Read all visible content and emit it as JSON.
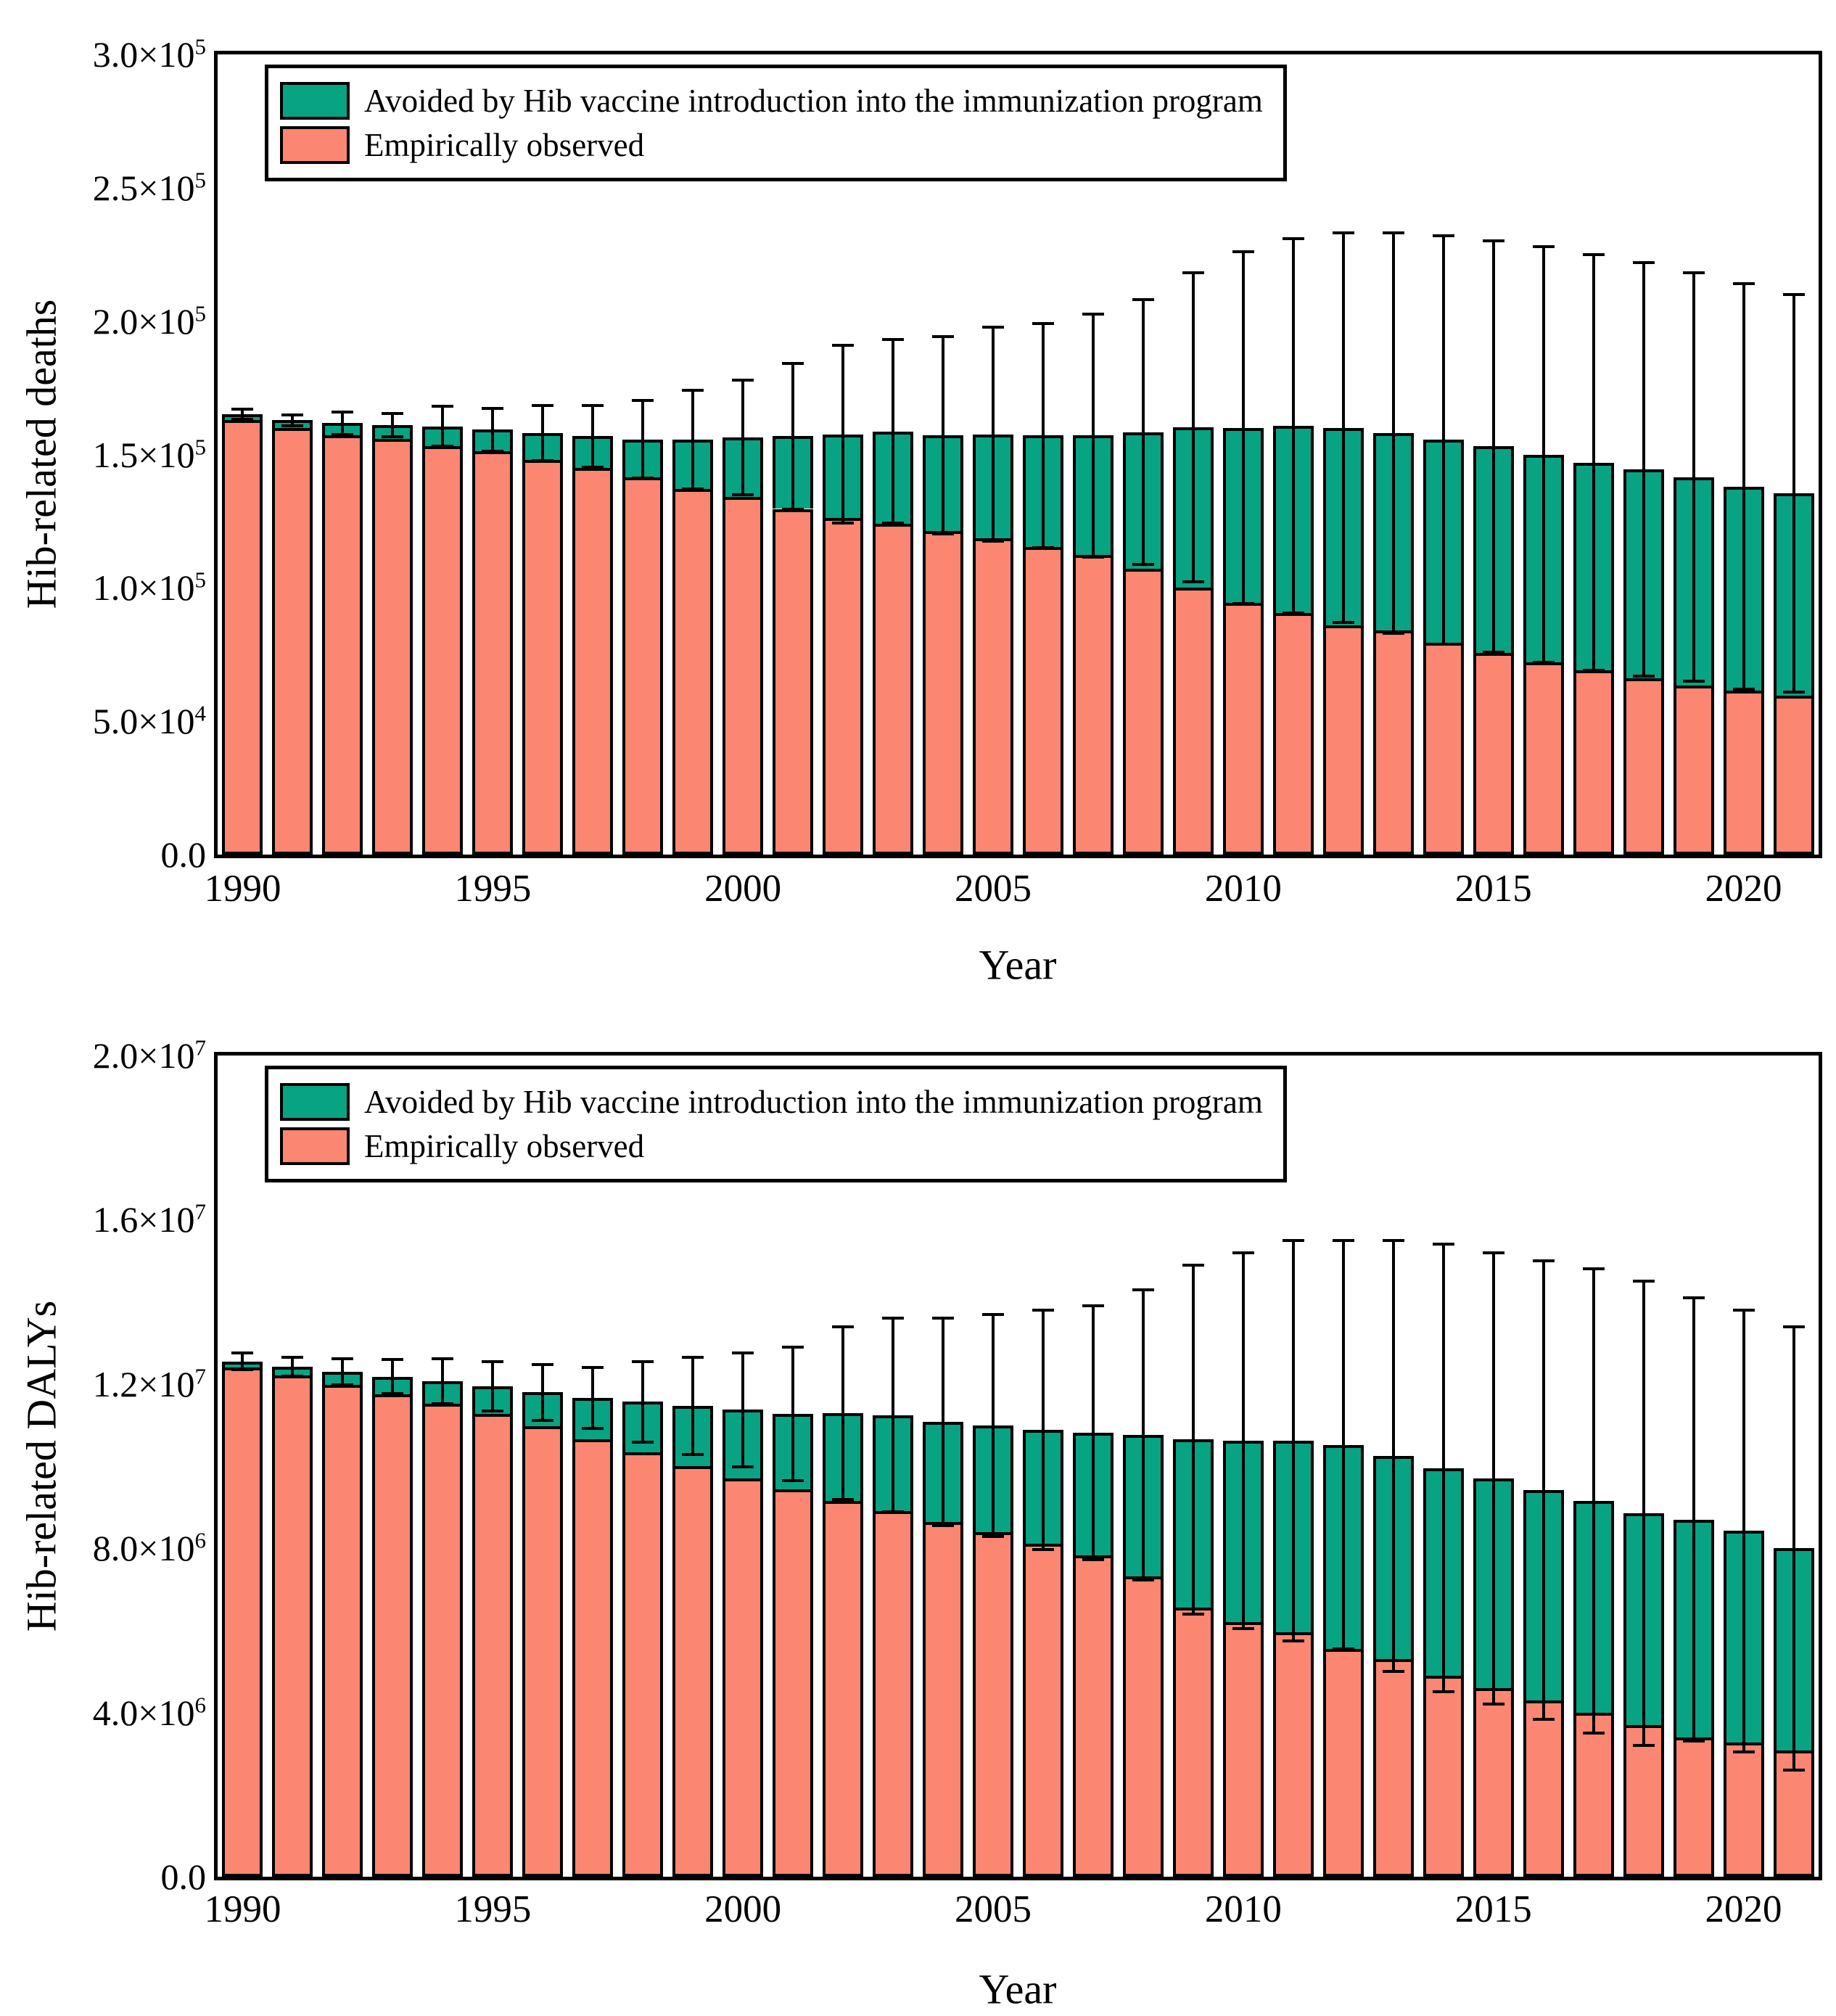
{
  "figure_background": "#ffffff",
  "colors": {
    "avoided": "#07a383",
    "observed": "#fb8672",
    "outline": "#000000",
    "error_bar": "#000000"
  },
  "legend": {
    "items": [
      {
        "key": "avoided",
        "label": "Avoided by Hib vaccine introduction into the immunization program"
      },
      {
        "key": "observed",
        "label": "Empirically observed"
      }
    ]
  },
  "chart_data": [
    {
      "type": "bar",
      "stacked": true,
      "ylabel": "Hib-related deaths",
      "xlabel": "Year",
      "ylim": [
        0,
        300000
      ],
      "ytick_step": 50000,
      "ytick_labels": [
        "0.0",
        "5.0×10^4",
        "1.0×10^5",
        "1.5×10^5",
        "2.0×10^5",
        "2.5×10^5",
        "3.0×10^5"
      ],
      "xtick_years": [
        1990,
        1995,
        2000,
        2005,
        2010,
        2015,
        2020
      ],
      "years": [
        1990,
        1991,
        1992,
        1993,
        1994,
        1995,
        1996,
        1997,
        1998,
        1999,
        2000,
        2001,
        2002,
        2003,
        2004,
        2005,
        2006,
        2007,
        2008,
        2009,
        2010,
        2011,
        2012,
        2013,
        2014,
        2015,
        2016,
        2017,
        2018,
        2019,
        2020,
        2021
      ],
      "grid": false,
      "legend_position": "top-left",
      "series": [
        {
          "name": "Empirically observed",
          "values": [
            162800,
            159800,
            157100,
            155800,
            153100,
            151100,
            147900,
            144900,
            141300,
            137000,
            134000,
            129600,
            126100,
            123900,
            121200,
            118500,
            115200,
            112200,
            107100,
            100000,
            94500,
            90500,
            86000,
            84000,
            79500,
            75500,
            72000,
            69000,
            66000,
            63500,
            61500,
            59500
          ]
        },
        {
          "name": "Avoided by Hib vaccine introduction into the immunization program",
          "values": [
            2400,
            3000,
            4600,
            5300,
            7500,
            8200,
            10100,
            11900,
            14400,
            18700,
            22500,
            27200,
            31500,
            34800,
            36100,
            39100,
            41900,
            44900,
            51300,
            60100,
            65500,
            70300,
            74000,
            74000,
            76000,
            77500,
            78000,
            78000,
            78500,
            78000,
            76500,
            76000
          ]
        }
      ],
      "error_high": [
        167100,
        164900,
        165800,
        165500,
        168000,
        167400,
        168300,
        168300,
        170200,
        174200,
        178000,
        184000,
        191000,
        193200,
        194300,
        197600,
        199200,
        202700,
        208000,
        218000,
        226000,
        231000,
        233000,
        233000,
        232000,
        230000,
        228000,
        225000,
        222000,
        218000,
        214000,
        210000
      ],
      "error_note": "error bars symmetric about stacked-bar total; lower whisker = 2*total - upper"
    },
    {
      "type": "bar",
      "stacked": true,
      "ylabel": "Hib-related DALYs",
      "xlabel": "Year",
      "ylim": [
        0,
        20000000
      ],
      "ytick_step": 4000000,
      "ytick_labels": [
        "0.0",
        "4.0×10^6",
        "8.0×10^6",
        "1.2×10^7",
        "1.6×10^7",
        "2.0×10^7"
      ],
      "xtick_years": [
        1990,
        1995,
        2000,
        2005,
        2010,
        2015,
        2020
      ],
      "years": [
        1990,
        1991,
        1992,
        1993,
        1994,
        1995,
        1996,
        1997,
        1998,
        1999,
        2000,
        2001,
        2002,
        2003,
        2004,
        2005,
        2006,
        2007,
        2008,
        2009,
        2010,
        2011,
        2012,
        2013,
        2014,
        2015,
        2016,
        2017,
        2018,
        2019,
        2020,
        2021
      ],
      "grid": false,
      "legend_position": "top-left",
      "series": [
        {
          "name": "Empirically observed",
          "values": [
            12400000,
            12200000,
            11970000,
            11750000,
            11520000,
            11270000,
            10970000,
            10650000,
            10330000,
            10000000,
            9700000,
            9430000,
            9150000,
            8900000,
            8640000,
            8390000,
            8110000,
            7820000,
            7310000,
            6550000,
            6200000,
            5950000,
            5550000,
            5300000,
            4900000,
            4600000,
            4300000,
            4000000,
            3700000,
            3400000,
            3270000,
            3080000
          ]
        },
        {
          "name": "Avoided by Hib vaccine introduction into the immunization program",
          "values": [
            150000,
            220000,
            330000,
            430000,
            550000,
            680000,
            830000,
            1010000,
            1240000,
            1470000,
            1670000,
            1840000,
            2140000,
            2340000,
            2440000,
            2600000,
            2770000,
            2990000,
            3450000,
            4100000,
            4420000,
            4670000,
            4970000,
            4950000,
            5050000,
            5100000,
            5120000,
            5150000,
            5150000,
            5300000,
            5150000,
            4920000
          ]
        }
      ],
      "error_high": [
        12750000,
        12650000,
        12620000,
        12600000,
        12620000,
        12550000,
        12480000,
        12400000,
        12550000,
        12650000,
        12750000,
        12900000,
        13400000,
        13600000,
        13600000,
        13700000,
        13800000,
        13900000,
        14300000,
        14900000,
        15200000,
        15500000,
        15500000,
        15500000,
        15400000,
        15200000,
        15000000,
        14800000,
        14500000,
        14100000,
        13800000,
        13400000
      ]
    }
  ]
}
